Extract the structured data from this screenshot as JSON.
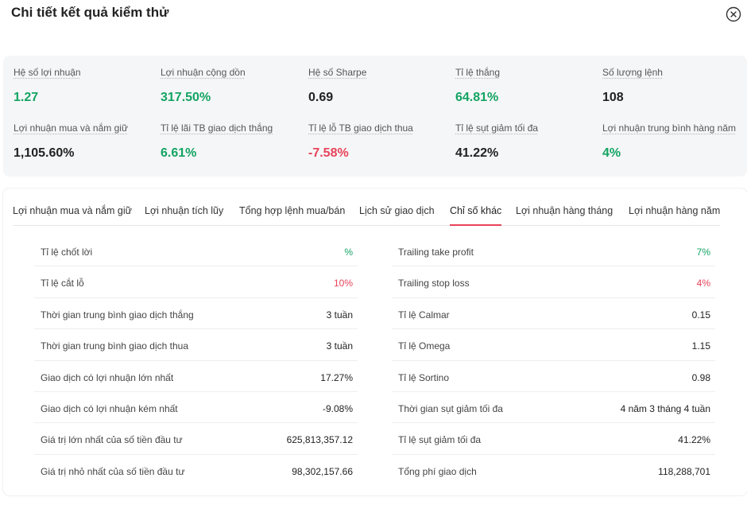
{
  "modal": {
    "title": "Chi tiết kết quả kiểm thử"
  },
  "colors": {
    "positive": "#13a463",
    "negative": "#e8435a",
    "tab_accent": "#e8435a"
  },
  "summary": [
    {
      "label": "Hệ số lợi nhuận",
      "value": "1.27",
      "tone": "pos"
    },
    {
      "label": "Lợi nhuận cộng dồn",
      "value": "317.50%",
      "tone": "pos"
    },
    {
      "label": "Hệ số Sharpe",
      "value": "0.69",
      "tone": "neu"
    },
    {
      "label": "Tỉ lệ thắng",
      "value": "64.81%",
      "tone": "pos"
    },
    {
      "label": "Số lượng lệnh",
      "value": "108",
      "tone": "neu"
    },
    {
      "label": "Lợi nhuận mua và nắm giữ",
      "value": "1,105.60%",
      "tone": "neu"
    },
    {
      "label": "Tỉ lệ lãi TB giao dịch thắng",
      "value": "6.61%",
      "tone": "pos"
    },
    {
      "label": "Tỉ lệ lỗ TB giao dịch thua",
      "value": "-7.58%",
      "tone": "neg"
    },
    {
      "label": "Tỉ lệ sụt giảm tối đa",
      "value": "41.22%",
      "tone": "neu"
    },
    {
      "label": "Lợi nhuận trung bình hàng năm",
      "value": "4%",
      "tone": "pos"
    }
  ],
  "tabs": [
    {
      "label": "Lợi nhuận mua và nắm giữ",
      "active": false
    },
    {
      "label": "Lợi nhuận tích lũy",
      "active": false
    },
    {
      "label": "Tổng hợp lệnh mua/bán",
      "active": false
    },
    {
      "label": "Lịch sử giao dịch",
      "active": false
    },
    {
      "label": "Chỉ số khác",
      "active": true
    },
    {
      "label": "Lợi nhuận hàng tháng",
      "active": false
    },
    {
      "label": "Lợi nhuận hàng năm",
      "active": false
    }
  ],
  "left_table": [
    {
      "label": "Tỉ lệ chốt lời",
      "value": "%",
      "tone": "pos"
    },
    {
      "label": "Tỉ lệ cắt lỗ",
      "value": "10%",
      "tone": "neg"
    },
    {
      "label": "Thời gian trung bình giao dịch thắng",
      "value": "3 tuần",
      "tone": "neu"
    },
    {
      "label": "Thời gian trung bình giao dịch thua",
      "value": "3 tuần",
      "tone": "neu"
    },
    {
      "label": "Giao dịch có lợi nhuận lớn nhất",
      "value": "17.27%",
      "tone": "neu"
    },
    {
      "label": "Giao dịch có lợi nhuận kém nhất",
      "value": "-9.08%",
      "tone": "neu"
    },
    {
      "label": "Giá trị lớn nhất của số tiền đầu tư",
      "value": "625,813,357.12",
      "tone": "neu"
    },
    {
      "label": "Giá trị nhỏ nhất của số tiền đầu tư",
      "value": "98,302,157.66",
      "tone": "neu"
    }
  ],
  "right_table": [
    {
      "label": "Trailing take profit",
      "value": "7%",
      "tone": "pos"
    },
    {
      "label": "Trailing stop loss",
      "value": "4%",
      "tone": "neg"
    },
    {
      "label": "Tỉ lệ Calmar",
      "value": "0.15",
      "tone": "neu"
    },
    {
      "label": "Tỉ lệ Omega",
      "value": "1.15",
      "tone": "neu"
    },
    {
      "label": "Tỉ lệ Sortino",
      "value": "0.98",
      "tone": "neu"
    },
    {
      "label": "Thời gian sụt giảm tối đa",
      "value": "4 năm 3 tháng 4 tuần",
      "tone": "neu"
    },
    {
      "label": "Tỉ lệ sụt giảm tối đa",
      "value": "41.22%",
      "tone": "neu"
    },
    {
      "label": "Tổng phí giao dịch",
      "value": "118,288,701",
      "tone": "neu"
    }
  ]
}
